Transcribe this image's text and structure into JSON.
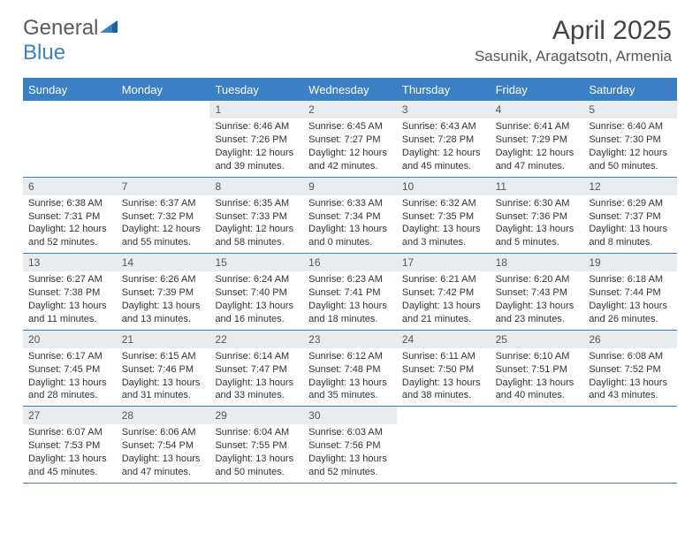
{
  "brand": {
    "part1": "General",
    "part2": "Blue"
  },
  "title": "April 2025",
  "location": "Sasunik, Aragatsotn, Armenia",
  "colors": {
    "primary": "#3b7fc4",
    "dayNumBg": "#e9ecef",
    "text": "#333333",
    "headerText": "#ffffff"
  },
  "dow": [
    "Sunday",
    "Monday",
    "Tuesday",
    "Wednesday",
    "Thursday",
    "Friday",
    "Saturday"
  ],
  "weeks": [
    [
      {
        "empty": true
      },
      {
        "empty": true
      },
      {
        "n": "1",
        "sr": "6:46 AM",
        "ss": "7:26 PM",
        "dl": "12 hours and 39 minutes."
      },
      {
        "n": "2",
        "sr": "6:45 AM",
        "ss": "7:27 PM",
        "dl": "12 hours and 42 minutes."
      },
      {
        "n": "3",
        "sr": "6:43 AM",
        "ss": "7:28 PM",
        "dl": "12 hours and 45 minutes."
      },
      {
        "n": "4",
        "sr": "6:41 AM",
        "ss": "7:29 PM",
        "dl": "12 hours and 47 minutes."
      },
      {
        "n": "5",
        "sr": "6:40 AM",
        "ss": "7:30 PM",
        "dl": "12 hours and 50 minutes."
      }
    ],
    [
      {
        "n": "6",
        "sr": "6:38 AM",
        "ss": "7:31 PM",
        "dl": "12 hours and 52 minutes."
      },
      {
        "n": "7",
        "sr": "6:37 AM",
        "ss": "7:32 PM",
        "dl": "12 hours and 55 minutes."
      },
      {
        "n": "8",
        "sr": "6:35 AM",
        "ss": "7:33 PM",
        "dl": "12 hours and 58 minutes."
      },
      {
        "n": "9",
        "sr": "6:33 AM",
        "ss": "7:34 PM",
        "dl": "13 hours and 0 minutes."
      },
      {
        "n": "10",
        "sr": "6:32 AM",
        "ss": "7:35 PM",
        "dl": "13 hours and 3 minutes."
      },
      {
        "n": "11",
        "sr": "6:30 AM",
        "ss": "7:36 PM",
        "dl": "13 hours and 5 minutes."
      },
      {
        "n": "12",
        "sr": "6:29 AM",
        "ss": "7:37 PM",
        "dl": "13 hours and 8 minutes."
      }
    ],
    [
      {
        "n": "13",
        "sr": "6:27 AM",
        "ss": "7:38 PM",
        "dl": "13 hours and 11 minutes."
      },
      {
        "n": "14",
        "sr": "6:26 AM",
        "ss": "7:39 PM",
        "dl": "13 hours and 13 minutes."
      },
      {
        "n": "15",
        "sr": "6:24 AM",
        "ss": "7:40 PM",
        "dl": "13 hours and 16 minutes."
      },
      {
        "n": "16",
        "sr": "6:23 AM",
        "ss": "7:41 PM",
        "dl": "13 hours and 18 minutes."
      },
      {
        "n": "17",
        "sr": "6:21 AM",
        "ss": "7:42 PM",
        "dl": "13 hours and 21 minutes."
      },
      {
        "n": "18",
        "sr": "6:20 AM",
        "ss": "7:43 PM",
        "dl": "13 hours and 23 minutes."
      },
      {
        "n": "19",
        "sr": "6:18 AM",
        "ss": "7:44 PM",
        "dl": "13 hours and 26 minutes."
      }
    ],
    [
      {
        "n": "20",
        "sr": "6:17 AM",
        "ss": "7:45 PM",
        "dl": "13 hours and 28 minutes."
      },
      {
        "n": "21",
        "sr": "6:15 AM",
        "ss": "7:46 PM",
        "dl": "13 hours and 31 minutes."
      },
      {
        "n": "22",
        "sr": "6:14 AM",
        "ss": "7:47 PM",
        "dl": "13 hours and 33 minutes."
      },
      {
        "n": "23",
        "sr": "6:12 AM",
        "ss": "7:48 PM",
        "dl": "13 hours and 35 minutes."
      },
      {
        "n": "24",
        "sr": "6:11 AM",
        "ss": "7:50 PM",
        "dl": "13 hours and 38 minutes."
      },
      {
        "n": "25",
        "sr": "6:10 AM",
        "ss": "7:51 PM",
        "dl": "13 hours and 40 minutes."
      },
      {
        "n": "26",
        "sr": "6:08 AM",
        "ss": "7:52 PM",
        "dl": "13 hours and 43 minutes."
      }
    ],
    [
      {
        "n": "27",
        "sr": "6:07 AM",
        "ss": "7:53 PM",
        "dl": "13 hours and 45 minutes."
      },
      {
        "n": "28",
        "sr": "6:06 AM",
        "ss": "7:54 PM",
        "dl": "13 hours and 47 minutes."
      },
      {
        "n": "29",
        "sr": "6:04 AM",
        "ss": "7:55 PM",
        "dl": "13 hours and 50 minutes."
      },
      {
        "n": "30",
        "sr": "6:03 AM",
        "ss": "7:56 PM",
        "dl": "13 hours and 52 minutes."
      },
      {
        "empty": true
      },
      {
        "empty": true
      },
      {
        "empty": true
      }
    ]
  ],
  "labels": {
    "sunrise": "Sunrise:",
    "sunset": "Sunset:",
    "daylight": "Daylight:"
  }
}
